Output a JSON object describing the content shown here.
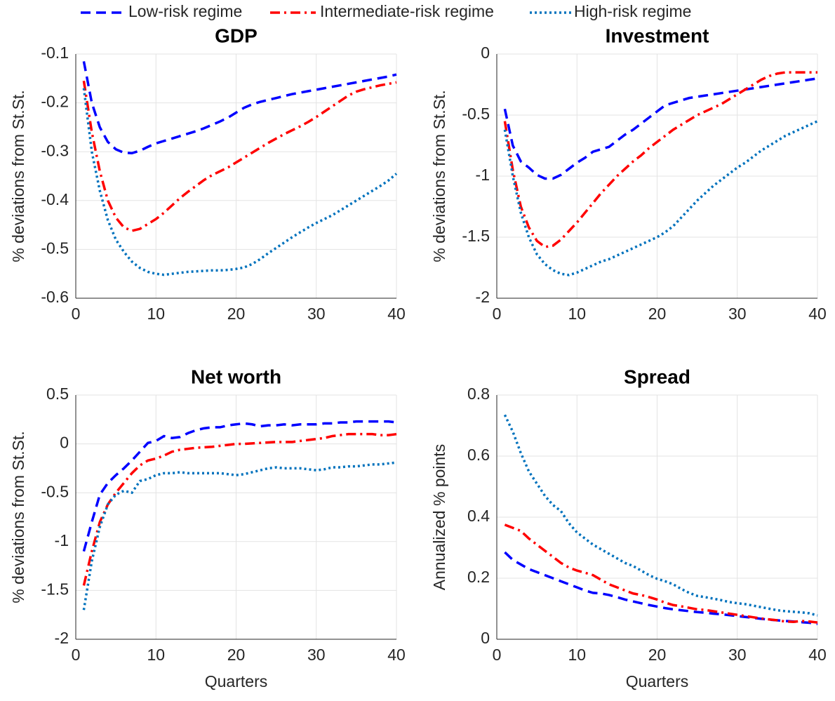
{
  "chart_data": [
    {
      "type": "line",
      "title": "GDP",
      "ylabel": "% deviations from St.St.",
      "grid": true,
      "x": [
        1,
        2,
        3,
        4,
        5,
        6,
        7,
        8,
        9,
        10,
        11,
        12,
        13,
        14,
        15,
        16,
        17,
        18,
        19,
        20,
        21,
        22,
        23,
        24,
        25,
        26,
        27,
        28,
        29,
        30,
        31,
        32,
        33,
        34,
        35,
        36,
        37,
        38,
        39,
        40
      ],
      "xlim": [
        0,
        40
      ],
      "xticks": [
        0,
        10,
        20,
        30,
        40
      ],
      "ylim": [
        -0.6,
        -0.1
      ],
      "yticks": [
        -0.6,
        -0.5,
        -0.4,
        -0.3,
        -0.2,
        -0.1
      ],
      "series": [
        {
          "name": "Low-risk regime",
          "color": "#0000ff",
          "linestyle": "dashed",
          "values": [
            -0.115,
            -0.2,
            -0.25,
            -0.28,
            -0.295,
            -0.302,
            -0.303,
            -0.298,
            -0.29,
            -0.283,
            -0.278,
            -0.273,
            -0.268,
            -0.263,
            -0.258,
            -0.252,
            -0.245,
            -0.238,
            -0.23,
            -0.22,
            -0.21,
            -0.203,
            -0.198,
            -0.194,
            -0.19,
            -0.186,
            -0.182,
            -0.179,
            -0.176,
            -0.173,
            -0.17,
            -0.167,
            -0.164,
            -0.161,
            -0.158,
            -0.155,
            -0.152,
            -0.149,
            -0.146,
            -0.142
          ]
        },
        {
          "name": "Intermediate-risk regime",
          "color": "#ff0000",
          "linestyle": "dashdot",
          "values": [
            -0.155,
            -0.26,
            -0.34,
            -0.4,
            -0.435,
            -0.455,
            -0.462,
            -0.458,
            -0.448,
            -0.438,
            -0.425,
            -0.41,
            -0.395,
            -0.382,
            -0.37,
            -0.358,
            -0.348,
            -0.34,
            -0.332,
            -0.322,
            -0.312,
            -0.302,
            -0.292,
            -0.282,
            -0.273,
            -0.264,
            -0.256,
            -0.248,
            -0.239,
            -0.229,
            -0.218,
            -0.207,
            -0.196,
            -0.185,
            -0.177,
            -0.172,
            -0.168,
            -0.164,
            -0.161,
            -0.158
          ]
        },
        {
          "name": "High-risk regime",
          "color": "#0072bd",
          "linestyle": "dotted",
          "values": [
            -0.17,
            -0.3,
            -0.38,
            -0.44,
            -0.48,
            -0.505,
            -0.525,
            -0.538,
            -0.546,
            -0.55,
            -0.552,
            -0.55,
            -0.548,
            -0.546,
            -0.545,
            -0.544,
            -0.543,
            -0.543,
            -0.542,
            -0.54,
            -0.537,
            -0.53,
            -0.52,
            -0.508,
            -0.497,
            -0.486,
            -0.475,
            -0.465,
            -0.455,
            -0.446,
            -0.438,
            -0.43,
            -0.42,
            -0.41,
            -0.4,
            -0.39,
            -0.38,
            -0.37,
            -0.359,
            -0.345
          ]
        }
      ]
    },
    {
      "type": "line",
      "title": "Investment",
      "ylabel": "% deviations from St.St.",
      "grid": true,
      "x": [
        1,
        2,
        3,
        4,
        5,
        6,
        7,
        8,
        9,
        10,
        11,
        12,
        13,
        14,
        15,
        16,
        17,
        18,
        19,
        20,
        21,
        22,
        23,
        24,
        25,
        26,
        27,
        28,
        29,
        30,
        31,
        32,
        33,
        34,
        35,
        36,
        37,
        38,
        39,
        40
      ],
      "xlim": [
        0,
        40
      ],
      "xticks": [
        0,
        10,
        20,
        30,
        40
      ],
      "ylim": [
        -2,
        0
      ],
      "yticks": [
        -2,
        -1.5,
        -1,
        -0.5,
        0
      ],
      "series": [
        {
          "color": "#0000ff",
          "linestyle": "dashed",
          "values": [
            -0.45,
            -0.75,
            -0.88,
            -0.93,
            -0.99,
            -1.02,
            -1.02,
            -0.99,
            -0.94,
            -0.89,
            -0.85,
            -0.8,
            -0.78,
            -0.76,
            -0.71,
            -0.66,
            -0.62,
            -0.57,
            -0.52,
            -0.47,
            -0.42,
            -0.4,
            -0.38,
            -0.36,
            -0.35,
            -0.34,
            -0.33,
            -0.32,
            -0.31,
            -0.3,
            -0.29,
            -0.28,
            -0.27,
            -0.26,
            -0.25,
            -0.24,
            -0.23,
            -0.22,
            -0.21,
            -0.2
          ]
        },
        {
          "color": "#ff0000",
          "linestyle": "dashdot",
          "values": [
            -0.55,
            -0.95,
            -1.25,
            -1.42,
            -1.53,
            -1.58,
            -1.57,
            -1.52,
            -1.45,
            -1.38,
            -1.3,
            -1.22,
            -1.14,
            -1.07,
            -1.0,
            -0.94,
            -0.88,
            -0.83,
            -0.77,
            -0.72,
            -0.67,
            -0.62,
            -0.58,
            -0.54,
            -0.5,
            -0.47,
            -0.44,
            -0.41,
            -0.37,
            -0.33,
            -0.29,
            -0.25,
            -0.21,
            -0.18,
            -0.16,
            -0.15,
            -0.15,
            -0.15,
            -0.15,
            -0.15
          ]
        },
        {
          "color": "#0072bd",
          "linestyle": "dotted",
          "values": [
            -0.62,
            -1.0,
            -1.3,
            -1.5,
            -1.64,
            -1.72,
            -1.77,
            -1.8,
            -1.81,
            -1.79,
            -1.76,
            -1.73,
            -1.7,
            -1.68,
            -1.65,
            -1.62,
            -1.59,
            -1.56,
            -1.53,
            -1.5,
            -1.46,
            -1.41,
            -1.34,
            -1.27,
            -1.2,
            -1.14,
            -1.08,
            -1.03,
            -0.98,
            -0.93,
            -0.89,
            -0.84,
            -0.79,
            -0.75,
            -0.71,
            -0.67,
            -0.64,
            -0.61,
            -0.58,
            -0.55
          ]
        }
      ]
    },
    {
      "type": "line",
      "title": "Net worth",
      "ylabel": "% deviations from St.St.",
      "xlabel": "Quarters",
      "grid": true,
      "x": [
        1,
        2,
        3,
        4,
        5,
        6,
        7,
        8,
        9,
        10,
        11,
        12,
        13,
        14,
        15,
        16,
        17,
        18,
        19,
        20,
        21,
        22,
        23,
        24,
        25,
        26,
        27,
        28,
        29,
        30,
        31,
        32,
        33,
        34,
        35,
        36,
        37,
        38,
        39,
        40
      ],
      "xlim": [
        0,
        40
      ],
      "xticks": [
        0,
        10,
        20,
        30,
        40
      ],
      "ylim": [
        -2,
        0.5
      ],
      "yticks": [
        -2,
        -1.5,
        -1,
        -0.5,
        0,
        0.5
      ],
      "series": [
        {
          "color": "#0000ff",
          "linestyle": "dashed",
          "values": [
            -1.1,
            -0.8,
            -0.52,
            -0.4,
            -0.32,
            -0.25,
            -0.17,
            -0.08,
            0.01,
            0.03,
            0.08,
            0.06,
            0.07,
            0.11,
            0.14,
            0.16,
            0.17,
            0.17,
            0.19,
            0.2,
            0.21,
            0.2,
            0.18,
            0.19,
            0.19,
            0.2,
            0.19,
            0.2,
            0.2,
            0.2,
            0.21,
            0.21,
            0.22,
            0.22,
            0.23,
            0.23,
            0.23,
            0.23,
            0.23,
            0.22
          ]
        },
        {
          "color": "#ff0000",
          "linestyle": "dashdot",
          "values": [
            -1.45,
            -1.1,
            -0.8,
            -0.62,
            -0.5,
            -0.4,
            -0.3,
            -0.22,
            -0.17,
            -0.15,
            -0.12,
            -0.08,
            -0.06,
            -0.05,
            -0.04,
            -0.035,
            -0.03,
            -0.02,
            -0.01,
            0,
            0,
            0.005,
            0.01,
            0.015,
            0.02,
            0.02,
            0.02,
            0.03,
            0.04,
            0.05,
            0.06,
            0.08,
            0.09,
            0.1,
            0.1,
            0.1,
            0.1,
            0.09,
            0.09,
            0.1
          ]
        },
        {
          "color": "#0072bd",
          "linestyle": "dotted",
          "values": [
            -1.7,
            -1.2,
            -0.85,
            -0.62,
            -0.52,
            -0.48,
            -0.5,
            -0.38,
            -0.36,
            -0.32,
            -0.3,
            -0.3,
            -0.29,
            -0.3,
            -0.3,
            -0.3,
            -0.3,
            -0.3,
            -0.31,
            -0.32,
            -0.31,
            -0.29,
            -0.27,
            -0.25,
            -0.24,
            -0.25,
            -0.25,
            -0.25,
            -0.26,
            -0.27,
            -0.26,
            -0.24,
            -0.24,
            -0.23,
            -0.23,
            -0.22,
            -0.21,
            -0.21,
            -0.2,
            -0.19
          ]
        }
      ]
    },
    {
      "type": "line",
      "title": "Spread",
      "ylabel": "Annualized % points",
      "xlabel": "Quarters",
      "grid": true,
      "x": [
        1,
        2,
        3,
        4,
        5,
        6,
        7,
        8,
        9,
        10,
        11,
        12,
        13,
        14,
        15,
        16,
        17,
        18,
        19,
        20,
        21,
        22,
        23,
        24,
        25,
        26,
        27,
        28,
        29,
        30,
        31,
        32,
        33,
        34,
        35,
        36,
        37,
        38,
        39,
        40
      ],
      "xlim": [
        0,
        40
      ],
      "xticks": [
        0,
        10,
        20,
        30,
        40
      ],
      "ylim": [
        0,
        0.8
      ],
      "yticks": [
        0,
        0.2,
        0.4,
        0.6,
        0.8
      ],
      "series": [
        {
          "color": "#0000ff",
          "linestyle": "dashed",
          "values": [
            0.285,
            0.26,
            0.245,
            0.23,
            0.22,
            0.21,
            0.2,
            0.19,
            0.18,
            0.17,
            0.16,
            0.152,
            0.15,
            0.145,
            0.138,
            0.13,
            0.124,
            0.118,
            0.112,
            0.107,
            0.102,
            0.098,
            0.095,
            0.092,
            0.089,
            0.087,
            0.084,
            0.082,
            0.079,
            0.076,
            0.073,
            0.07,
            0.067,
            0.064,
            0.062,
            0.06,
            0.058,
            0.056,
            0.054,
            0.05
          ]
        },
        {
          "color": "#ff0000",
          "linestyle": "dashdot",
          "values": [
            0.375,
            0.365,
            0.355,
            0.33,
            0.31,
            0.29,
            0.27,
            0.25,
            0.235,
            0.225,
            0.218,
            0.21,
            0.195,
            0.18,
            0.17,
            0.16,
            0.15,
            0.145,
            0.138,
            0.13,
            0.12,
            0.112,
            0.108,
            0.103,
            0.098,
            0.096,
            0.092,
            0.088,
            0.084,
            0.08,
            0.076,
            0.072,
            0.068,
            0.065,
            0.062,
            0.058,
            0.057,
            0.06,
            0.058,
            0.055
          ]
        },
        {
          "color": "#0072bd",
          "linestyle": "dotted",
          "values": [
            0.735,
            0.68,
            0.61,
            0.55,
            0.51,
            0.47,
            0.44,
            0.42,
            0.38,
            0.35,
            0.33,
            0.31,
            0.295,
            0.28,
            0.265,
            0.25,
            0.24,
            0.225,
            0.21,
            0.198,
            0.19,
            0.18,
            0.165,
            0.152,
            0.142,
            0.138,
            0.133,
            0.128,
            0.122,
            0.118,
            0.115,
            0.11,
            0.105,
            0.1,
            0.095,
            0.092,
            0.09,
            0.088,
            0.085,
            0.078
          ]
        }
      ]
    }
  ]
}
